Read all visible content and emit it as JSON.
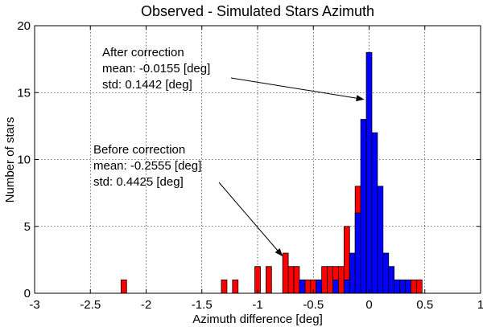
{
  "chart_data": {
    "type": "bar",
    "title": "Observed - Simulated Stars Azimuth",
    "xlabel": "Azimuth difference [deg]",
    "ylabel": "Number of stars",
    "xlim": [
      -3,
      1
    ],
    "ylim": [
      0,
      20
    ],
    "xticks": [
      "-3",
      "-2.5",
      "-2",
      "-1.5",
      "-1",
      "-0.5",
      "0",
      "0.5",
      "1"
    ],
    "yticks": [
      "0",
      "5",
      "10",
      "15",
      "20"
    ],
    "grid": true,
    "bin_width": 0.05,
    "series": [
      {
        "name": "Before correction",
        "color": "#ff0000",
        "bins": [
          {
            "x": -2.2,
            "y": 1
          },
          {
            "x": -1.3,
            "y": 1
          },
          {
            "x": -1.2,
            "y": 1
          },
          {
            "x": -1.0,
            "y": 2
          },
          {
            "x": -0.9,
            "y": 2
          },
          {
            "x": -0.75,
            "y": 3
          },
          {
            "x": -0.7,
            "y": 2
          },
          {
            "x": -0.65,
            "y": 2
          },
          {
            "x": -0.6,
            "y": 1
          },
          {
            "x": -0.55,
            "y": 1
          },
          {
            "x": -0.5,
            "y": 1
          },
          {
            "x": -0.45,
            "y": 1
          },
          {
            "x": -0.4,
            "y": 2
          },
          {
            "x": -0.35,
            "y": 2
          },
          {
            "x": -0.3,
            "y": 2
          },
          {
            "x": -0.25,
            "y": 2
          },
          {
            "x": -0.2,
            "y": 5
          },
          {
            "x": -0.15,
            "y": 2
          },
          {
            "x": -0.1,
            "y": 8
          },
          {
            "x": -0.05,
            "y": 6
          },
          {
            "x": 0.0,
            "y": 7
          },
          {
            "x": 0.05,
            "y": 5
          },
          {
            "x": 0.1,
            "y": 3
          },
          {
            "x": 0.15,
            "y": 1
          },
          {
            "x": 0.2,
            "y": 1
          },
          {
            "x": 0.25,
            "y": 1
          },
          {
            "x": 0.4,
            "y": 1
          },
          {
            "x": 0.45,
            "y": 1
          }
        ]
      },
      {
        "name": "After correction",
        "color": "#0000ff",
        "bins": [
          {
            "x": -0.6,
            "y": 1
          },
          {
            "x": -0.45,
            "y": 1
          },
          {
            "x": -0.3,
            "y": 1
          },
          {
            "x": -0.2,
            "y": 1
          },
          {
            "x": -0.15,
            "y": 3
          },
          {
            "x": -0.1,
            "y": 6
          },
          {
            "x": -0.05,
            "y": 13
          },
          {
            "x": 0.0,
            "y": 18
          },
          {
            "x": 0.05,
            "y": 12
          },
          {
            "x": 0.1,
            "y": 8
          },
          {
            "x": 0.15,
            "y": 3
          },
          {
            "x": 0.2,
            "y": 2
          },
          {
            "x": 0.25,
            "y": 1
          },
          {
            "x": 0.3,
            "y": 1
          },
          {
            "x": 0.35,
            "y": 1
          }
        ]
      }
    ],
    "annotations": [
      {
        "lines": [
          "After correction",
          "mean: -0.0155 [deg]",
          "std: 0.1442 [deg]"
        ],
        "arrow_to": {
          "x": -0.05,
          "y": 14.5
        }
      },
      {
        "lines": [
          "Before correction",
          "mean: -0.2555 [deg]",
          "std: 0.4425 [deg]"
        ],
        "arrow_to": {
          "x": -0.78,
          "y": 2.8
        }
      }
    ]
  }
}
